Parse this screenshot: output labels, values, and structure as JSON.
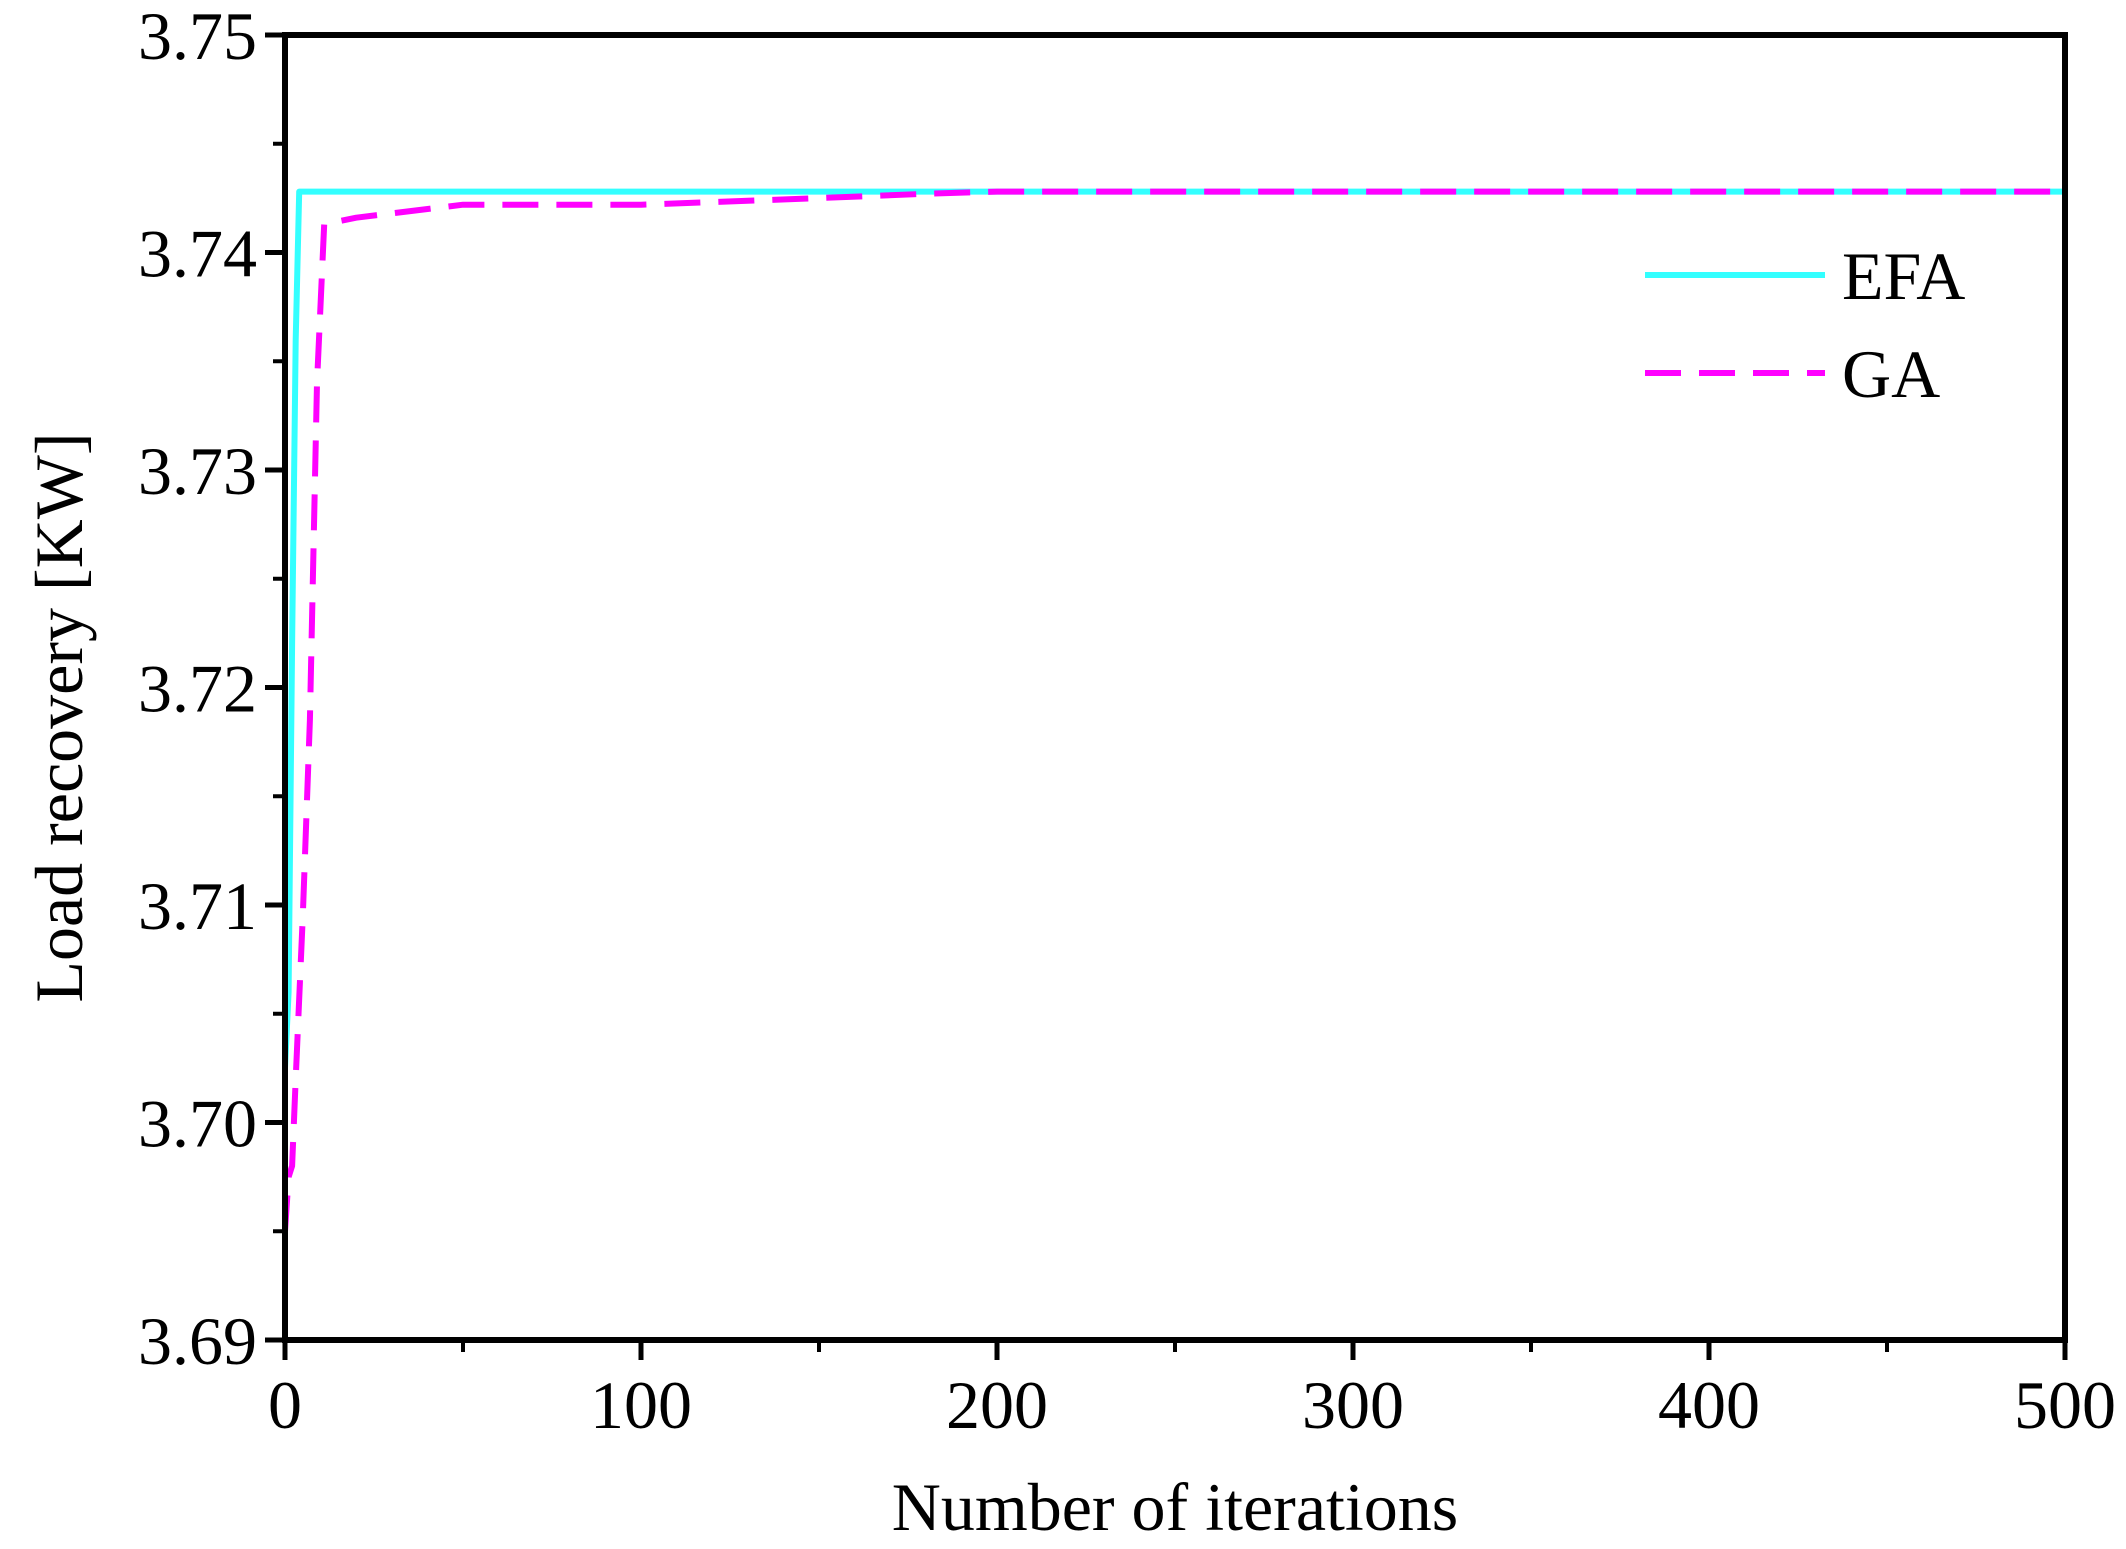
{
  "chart_data": {
    "type": "line",
    "title": "",
    "xlabel": "Number of iterations",
    "ylabel": "Load recovery [KW]",
    "xlim": [
      0,
      500
    ],
    "ylim": [
      3.69,
      3.75
    ],
    "x_ticks": [
      0,
      100,
      200,
      300,
      400,
      500
    ],
    "x_tick_labels": [
      "0",
      "100",
      "200",
      "300",
      "400",
      "500"
    ],
    "y_ticks": [
      3.69,
      3.7,
      3.71,
      3.72,
      3.73,
      3.74,
      3.75
    ],
    "y_tick_labels": [
      "3.69",
      "3.70",
      "3.71",
      "3.72",
      "3.73",
      "3.74",
      "3.75"
    ],
    "grid": false,
    "legend_position": "top-right",
    "series": [
      {
        "name": "EFA",
        "color": "#33ffff",
        "line_style": "solid",
        "x": [
          0,
          1,
          2,
          3,
          4,
          5,
          6,
          500
        ],
        "y": [
          3.7025,
          3.706,
          3.722,
          3.736,
          3.7428,
          3.7428,
          3.7428,
          3.7428
        ]
      },
      {
        "name": "GA",
        "color": "#ff00ff",
        "line_style": "dashed",
        "x": [
          0,
          1,
          2,
          3,
          5,
          7,
          9,
          11,
          20,
          50,
          100,
          150,
          180,
          200,
          500
        ],
        "y": [
          3.695,
          3.6975,
          3.698,
          3.702,
          3.7095,
          3.7185,
          3.734,
          3.7413,
          3.7416,
          3.7422,
          3.7422,
          3.7425,
          3.7427,
          3.7428,
          3.7428
        ]
      }
    ]
  }
}
